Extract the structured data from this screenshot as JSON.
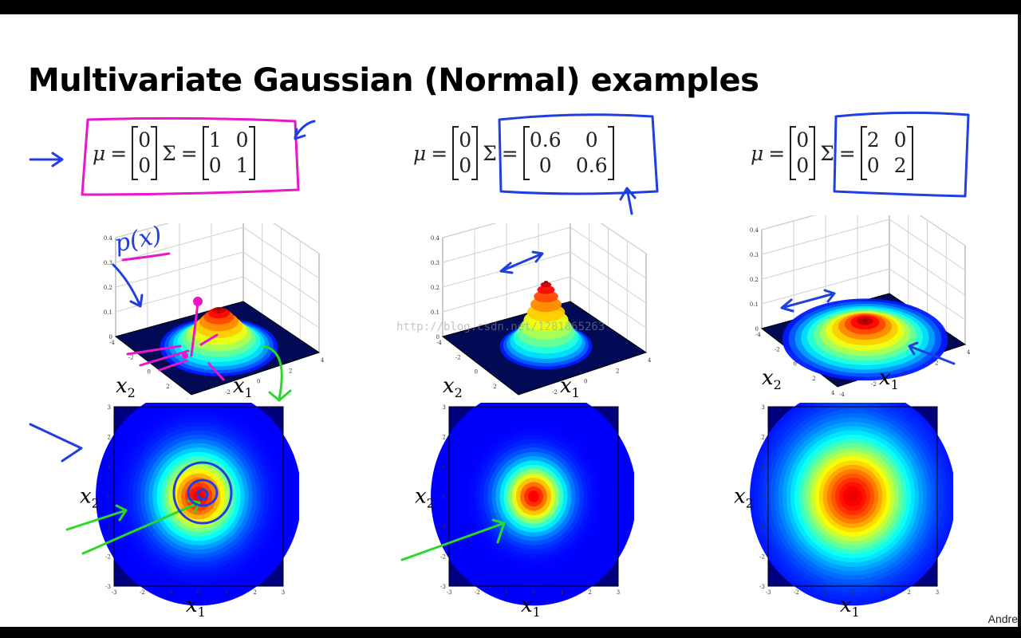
{
  "slide": {
    "title": "Multivariate Gaussian (Normal) examples",
    "author_fragment": "Andre",
    "watermark": "http://blog.csdn.net/1281865263",
    "annotation_text": "p(x)"
  },
  "examples": [
    {
      "mu_label": "μ",
      "sigma_label": "Σ",
      "equals": "=",
      "mu": [
        "0",
        "0"
      ],
      "sigma": [
        [
          "1",
          "0"
        ],
        [
          "0",
          "1"
        ]
      ],
      "peak": 0.16
    },
    {
      "mu_label": "μ",
      "sigma_label": "Σ",
      "equals": "=",
      "mu": [
        "0",
        "0"
      ],
      "sigma": [
        [
          "0.6",
          "0"
        ],
        [
          "0",
          "0.6"
        ]
      ],
      "peak": 0.27
    },
    {
      "mu_label": "μ",
      "sigma_label": "Σ",
      "equals": "=",
      "mu": [
        "0",
        "0"
      ],
      "sigma": [
        [
          "2",
          "0"
        ],
        [
          "0",
          "2"
        ]
      ],
      "peak": 0.08
    }
  ],
  "surface_axes": {
    "z_ticks": [
      "0",
      "0.1",
      "0.2",
      "0.3",
      "0.4"
    ],
    "xy_ticks": [
      "-4",
      "-2",
      "0",
      "2",
      "4"
    ],
    "x1_label": "x",
    "x1_sub": "1",
    "x2_label": "x",
    "x2_sub": "2"
  },
  "heatmap_axes": {
    "ticks": [
      "-3",
      "-2",
      "-1",
      "0",
      "1",
      "2",
      "3"
    ],
    "x1_label": "x",
    "x1_sub": "1",
    "x2_label": "x",
    "x2_sub": "2"
  },
  "colors": {
    "marker_pink": "#e817c8",
    "marker_blue": "#1f3fe0",
    "marker_green": "#29d92a"
  }
}
